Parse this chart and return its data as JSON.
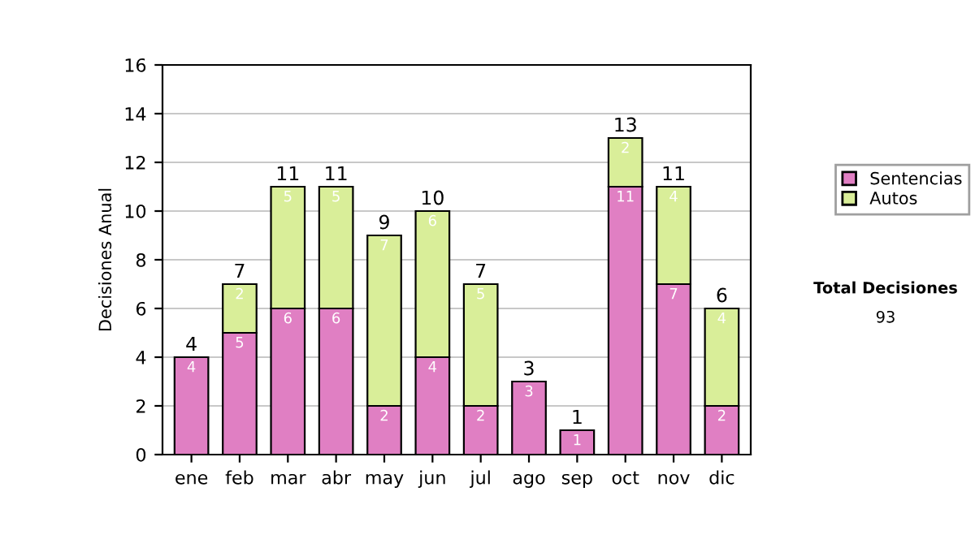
{
  "chart_data": {
    "type": "bar",
    "stacked": true,
    "ylabel": "Decisiones Anual",
    "categories": [
      "ene",
      "feb",
      "mar",
      "abr",
      "may",
      "jun",
      "jul",
      "ago",
      "sep",
      "oct",
      "nov",
      "dic"
    ],
    "series": [
      {
        "name": "Sentencias",
        "color": "#e07fc3",
        "values": [
          4,
          5,
          6,
          6,
          2,
          4,
          2,
          3,
          1,
          11,
          7,
          2
        ]
      },
      {
        "name": "Autos",
        "color": "#d9ee99",
        "values": [
          null,
          2,
          5,
          5,
          7,
          6,
          5,
          null,
          null,
          2,
          4,
          4
        ]
      }
    ],
    "ylim": [
      0,
      16
    ],
    "yticks": [
      0,
      2,
      4,
      6,
      8,
      10,
      12,
      14,
      16
    ],
    "grid": "y",
    "legend": "right",
    "data_labels": true,
    "totals": [
      "4",
      "7",
      "11",
      "11",
      "9",
      "10",
      "7",
      "3",
      "1",
      "13",
      "11",
      "6"
    ],
    "annotations": [
      "Total Decisiones",
      "93"
    ]
  }
}
